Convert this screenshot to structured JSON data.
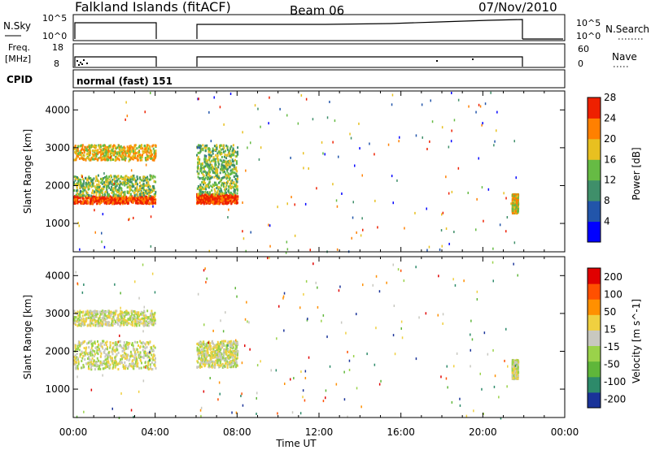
{
  "header": {
    "title": "Falkland Islands (fitACF)",
    "beam": "Beam 06",
    "date": "07/Nov/2010"
  },
  "status_panels": {
    "nsky_label": "N.Sky",
    "nsearch_label": "N.Search",
    "freq_label_line1": "Freq.",
    "freq_label_line2": "[MHz]",
    "nave_label": "Nave",
    "cpid_label": "CPID",
    "cpid_value": "normal (fast) 151",
    "noise_ticks": [
      "10^5",
      "10^0"
    ],
    "noise_ticks_right": [
      "10^5",
      "10^0"
    ],
    "freq_ticks": [
      "18",
      "8"
    ],
    "nave_ticks": [
      "60",
      "0"
    ]
  },
  "chart_data": [
    {
      "type": "heatmap",
      "name": "power",
      "ylabel": "Slant Range [km]",
      "ylim": [
        250,
        4500
      ],
      "yticks": [
        1000,
        2000,
        3000,
        4000
      ],
      "xlim": [
        0,
        24
      ],
      "colorbar_label": "Power [dB]",
      "colorbar_ticks": [
        "4",
        "8",
        "12",
        "16",
        "20",
        "24",
        "28"
      ],
      "colors": [
        "#0000ff",
        "#2255aa",
        "#3f8f6a",
        "#66bb44",
        "#e8c020",
        "#ff8000",
        "#ee2000"
      ],
      "data_gaps": [
        [
          4.0,
          6.0
        ]
      ],
      "data_end": 21.8,
      "scatter_regions": [
        {
          "x": [
            0.0,
            4.0
          ],
          "range": [
            1550,
            1750
          ],
          "level": 6
        },
        {
          "x": [
            0.0,
            4.0
          ],
          "range": [
            1750,
            2300
          ],
          "level": 3
        },
        {
          "x": [
            0.0,
            4.0
          ],
          "range": [
            2700,
            3100
          ],
          "level": 4
        },
        {
          "x": [
            6.0,
            8.0
          ],
          "range": [
            1550,
            1800
          ],
          "level": 6
        },
        {
          "x": [
            6.0,
            8.0
          ],
          "range": [
            1800,
            3100
          ],
          "level": 3
        },
        {
          "x": [
            21.4,
            21.7
          ],
          "range": [
            1300,
            1800
          ],
          "level": 4
        }
      ]
    },
    {
      "type": "heatmap",
      "name": "velocity",
      "ylabel": "Slant Range [km]",
      "xlabel": "Time UT",
      "ylim": [
        250,
        4500
      ],
      "yticks": [
        1000,
        2000,
        3000,
        4000
      ],
      "xlim": [
        0,
        24
      ],
      "xticks": [
        "00:00",
        "04:00",
        "08:00",
        "12:00",
        "16:00",
        "20:00",
        "00:00"
      ],
      "colorbar_label": "Velocity [m s^-1]",
      "colorbar_ticks": [
        "200",
        "100",
        "50",
        "15",
        "-15",
        "-50",
        "-100",
        "-200"
      ],
      "colors": [
        "#1a3399",
        "#2d8a6a",
        "#5fb63a",
        "#9ad24a",
        "#c8c8c0",
        "#f0d040",
        "#ff9000",
        "#ff5000",
        "#e00000"
      ],
      "data_gaps": [
        [
          4.0,
          6.0
        ]
      ],
      "data_end": 21.8,
      "scatter_regions": [
        {
          "x": [
            0.0,
            4.0
          ],
          "range": [
            1550,
            2300
          ],
          "level": 4
        },
        {
          "x": [
            0.0,
            4.0
          ],
          "range": [
            2700,
            3100
          ],
          "level": 4
        },
        {
          "x": [
            6.0,
            8.0
          ],
          "range": [
            1600,
            2300
          ],
          "level": 4
        },
        {
          "x": [
            21.4,
            21.7
          ],
          "range": [
            1300,
            1800
          ],
          "level": 4
        }
      ]
    }
  ]
}
